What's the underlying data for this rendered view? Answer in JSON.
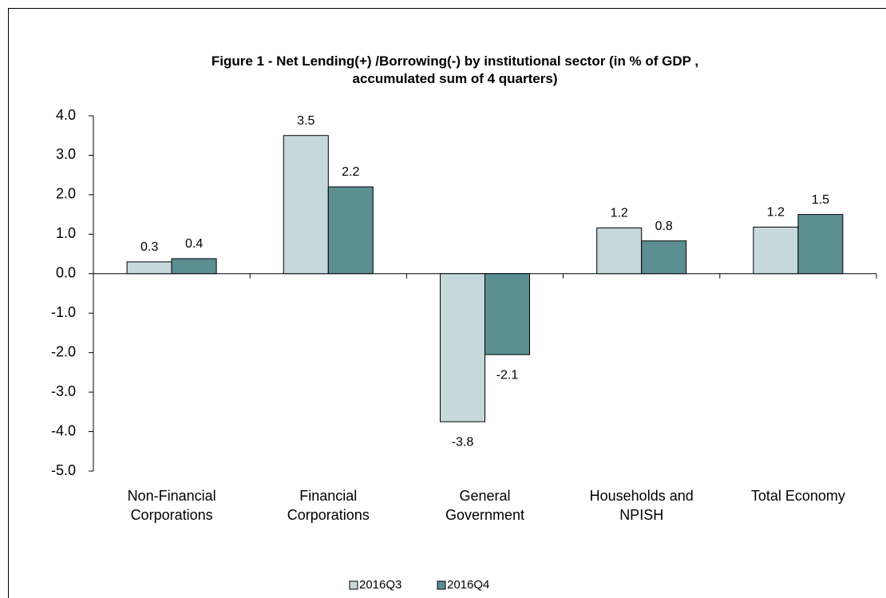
{
  "chart_data": {
    "type": "bar",
    "title": "Figure 1 - Net Lending(+) /Borrowing(-) by institutional sector  (in % of GDP ,\naccumulated sum of 4 quarters)",
    "categories": [
      "Non-Financial\nCorporations",
      "Financial\nCorporations",
      "General\nGovernment",
      "Households and\nNPISH",
      "Total Economy"
    ],
    "series": [
      {
        "name": "2016Q3",
        "color": "#c5d8db",
        "values": [
          0.3,
          3.5,
          -3.75,
          1.16,
          1.18
        ],
        "value_labels": [
          "0.3",
          "3.5",
          "-3.8",
          "1.2",
          "1.2"
        ]
      },
      {
        "name": "2016Q4",
        "color": "#5b8f92",
        "values": [
          0.38,
          2.2,
          -2.05,
          0.83,
          1.5
        ],
        "value_labels": [
          "0.4",
          "2.2",
          "-2.1",
          "0.8",
          "1.5"
        ]
      }
    ],
    "ylim": [
      -5,
      4
    ],
    "yticks": [
      {
        "value": -5,
        "label": "-5.0"
      },
      {
        "value": -4,
        "label": "-4.0"
      },
      {
        "value": -3,
        "label": "-3.0"
      },
      {
        "value": -2,
        "label": "-2.0"
      },
      {
        "value": -1,
        "label": "-1.0"
      },
      {
        "value": 0,
        "label": "0.0"
      },
      {
        "value": 1,
        "label": "1.0"
      },
      {
        "value": 2,
        "label": "2.0"
      },
      {
        "value": 3,
        "label": "3.0"
      },
      {
        "value": 4,
        "label": "4.0"
      }
    ],
    "legend": "bottom"
  }
}
